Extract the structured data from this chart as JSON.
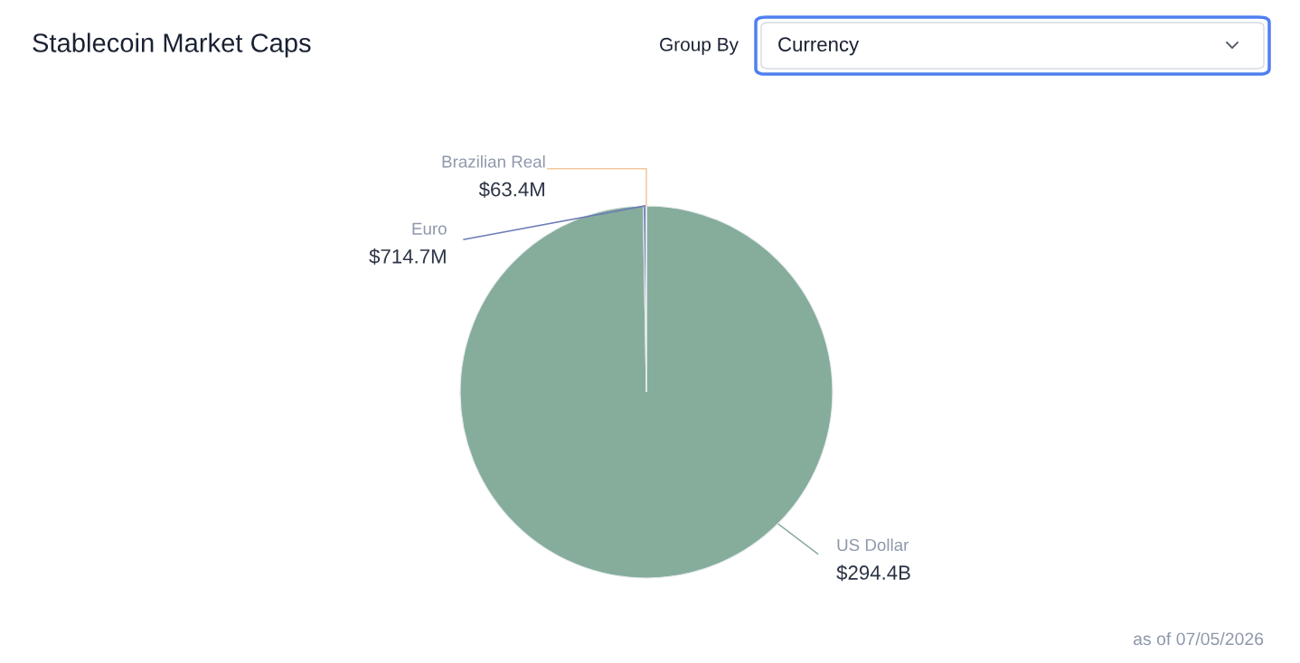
{
  "chart_data": {
    "type": "pie",
    "title": "Stablecoin Market Caps",
    "categories": [
      "US Dollar",
      "Euro",
      "Brazilian Real"
    ],
    "values": [
      294400000000,
      714700000,
      63400000
    ],
    "value_labels": [
      "$294.4B",
      "$714.7M",
      "$63.4M"
    ],
    "colors": [
      "#86ad9c",
      "#6b7bb5",
      "#f2c89e"
    ],
    "annotations": [
      "Group By",
      "Currency",
      "as of 07/05/2026"
    ]
  }
}
